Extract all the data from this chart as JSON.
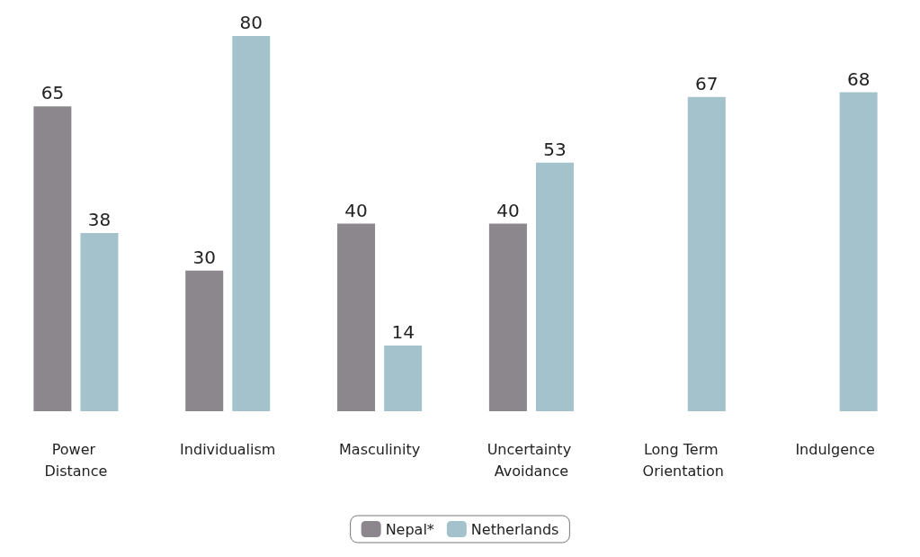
{
  "chart_data": {
    "type": "bar",
    "categories": [
      "Power Distance",
      "Individualism",
      "Masculinity",
      "Uncertainty Avoidance",
      "Long Term Orientation",
      "Indulgence"
    ],
    "series": [
      {
        "name": "Nepal*",
        "color": "#8b878d",
        "values": [
          65,
          30,
          40,
          40,
          null,
          null
        ]
      },
      {
        "name": "Netherlands",
        "color": "#a3c2cb",
        "values": [
          38,
          80,
          14,
          53,
          67,
          68
        ]
      }
    ],
    "data_labels": true,
    "legend": "bottom"
  }
}
